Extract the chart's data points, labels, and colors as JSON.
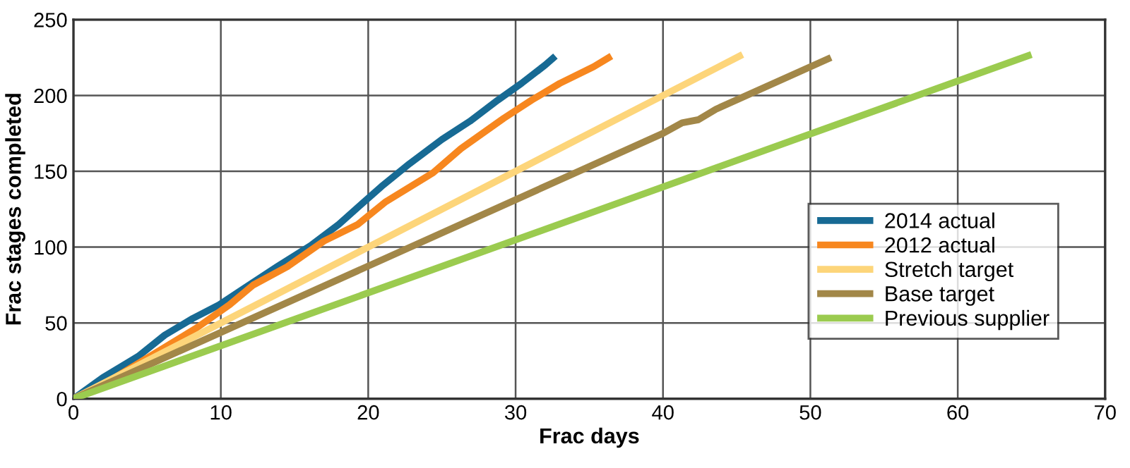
{
  "chart_data": {
    "type": "line",
    "xlabel": "Frac days",
    "ylabel": "Frac stages completed",
    "xlim": [
      0,
      70
    ],
    "xticks": [
      0,
      10,
      20,
      30,
      40,
      50,
      60,
      70
    ],
    "ylim": [
      0,
      250
    ],
    "yticks": [
      0,
      50,
      100,
      150,
      200,
      250
    ],
    "grid": true,
    "legend": "bottom right",
    "line_style": "solid",
    "marker": "none",
    "series": [
      {
        "name": "2014 actual",
        "color": "#176a94",
        "x": [
          0,
          2,
          4.4,
          6.2,
          8.1,
          9.9,
          11.6,
          13.8,
          16.1,
          18,
          20.9,
          22.8,
          25,
          26.9,
          28.8,
          30.4,
          32,
          32.7
        ],
        "values": [
          0,
          14,
          28,
          42,
          53,
          62,
          73,
          87,
          101,
          115,
          140,
          155,
          171,
          183,
          197,
          208,
          220,
          226
        ]
      },
      {
        "name": "2012 actual",
        "color": "#f7871f",
        "x": [
          0,
          2.3,
          5.2,
          8.4,
          10.6,
          12.2,
          14.5,
          17,
          19.3,
          21.2,
          24.4,
          26.3,
          29.2,
          31.1,
          33,
          35.3,
          36.5
        ],
        "values": [
          0,
          11,
          28,
          47,
          62,
          75,
          87,
          104,
          115,
          130,
          149,
          165,
          185,
          197,
          208,
          219,
          226
        ]
      },
      {
        "name": "Stretch target",
        "color": "#fdd57a",
        "x": [
          0,
          40,
          45.4
        ],
        "values": [
          0,
          200,
          227
        ]
      },
      {
        "name": "Base target",
        "color": "#a28748",
        "x": [
          0,
          40,
          41.3,
          42.4,
          43.6,
          51.4
        ],
        "values": [
          0,
          175,
          182,
          184,
          191,
          225
        ]
      },
      {
        "name": "Previous supplier",
        "color": "#9bcb4f",
        "x": [
          0,
          65
        ],
        "values": [
          0,
          227
        ]
      }
    ]
  }
}
